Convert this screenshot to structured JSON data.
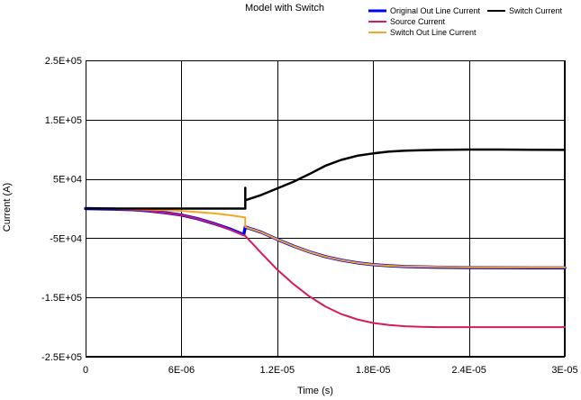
{
  "chart_data": {
    "type": "line",
    "title": "Model with Switch",
    "xlabel": "Time (s)",
    "ylabel": "Current (A)",
    "xlim": [
      0,
      3e-05
    ],
    "ylim": [
      -250000,
      250000
    ],
    "x_ticks": [
      {
        "value": 0,
        "label": "0"
      },
      {
        "value": 6e-06,
        "label": "6E-06"
      },
      {
        "value": 1.2e-05,
        "label": "1.2E-05"
      },
      {
        "value": 1.8e-05,
        "label": "1.8E-05"
      },
      {
        "value": 2.4e-05,
        "label": "2.4E-05"
      },
      {
        "value": 3e-05,
        "label": "3E-05"
      }
    ],
    "y_ticks": [
      {
        "value": 250000,
        "label": "2.5E+05"
      },
      {
        "value": 150000,
        "label": "1.5E+05"
      },
      {
        "value": 50000,
        "label": "5E+04"
      },
      {
        "value": -50000,
        "label": "-5E+04"
      },
      {
        "value": -150000,
        "label": "-1.5E+05"
      },
      {
        "value": -250000,
        "label": "-2.5E+05"
      }
    ],
    "grid": true,
    "legend_position": "top-right",
    "series": [
      {
        "name": "Original Out Line Current",
        "color": "#0000ff",
        "width": 3.5,
        "x": [
          0,
          2e-06,
          3e-06,
          4e-06,
          5e-06,
          6e-06,
          7e-06,
          8e-06,
          9e-06,
          9.9e-06,
          1e-05,
          1.1e-05,
          1.2e-05,
          1.3e-05,
          1.4e-05,
          1.5e-05,
          1.6e-05,
          1.7e-05,
          1.8e-05,
          1.9e-05,
          2e-05,
          2.1e-05,
          2.2e-05,
          2.4e-05,
          2.6e-05,
          2.8e-05,
          3e-05
        ],
        "y": [
          0,
          -1000,
          -2000,
          -4000,
          -7000,
          -11000,
          -17000,
          -25000,
          -34000,
          -44000,
          -31000,
          -40000,
          -52000,
          -63000,
          -73000,
          -81000,
          -87000,
          -91500,
          -94500,
          -96500,
          -97800,
          -98500,
          -99000,
          -99500,
          -99700,
          -99800,
          -99800
        ]
      },
      {
        "name": "Source Current",
        "color": "#d81b60",
        "width": 2,
        "x": [
          0,
          2e-06,
          3e-06,
          4e-06,
          5e-06,
          6e-06,
          7e-06,
          8e-06,
          9e-06,
          1e-05,
          1.1e-05,
          1.2e-05,
          1.3e-05,
          1.4e-05,
          1.5e-05,
          1.6e-05,
          1.7e-05,
          1.8e-05,
          1.9e-05,
          2e-05,
          2.1e-05,
          2.2e-05,
          2.4e-05,
          2.6e-05,
          2.8e-05,
          3e-05
        ],
        "y": [
          0,
          -1000,
          -2000,
          -4000,
          -7000,
          -11000,
          -17000,
          -25000,
          -35000,
          -46000,
          -75000,
          -103000,
          -127000,
          -148000,
          -165000,
          -178000,
          -187000,
          -193000,
          -196500,
          -198500,
          -199500,
          -200000,
          -200000,
          -200000,
          -200000,
          -200000
        ]
      },
      {
        "name": "Switch Out Line Current",
        "color": "#f5a623",
        "width": 2,
        "x": [
          0,
          2e-06,
          4e-06,
          6e-06,
          8e-06,
          9e-06,
          1e-05,
          1e-05,
          1.1e-05,
          1.2e-05,
          1.3e-05,
          1.4e-05,
          1.5e-05,
          1.6e-05,
          1.7e-05,
          1.8e-05,
          1.9e-05,
          2e-05,
          2.2e-05,
          2.4e-05,
          2.6e-05,
          2.8e-05,
          3e-05
        ],
        "y": [
          0,
          -300,
          -1500,
          -4000,
          -8000,
          -11000,
          -15000,
          -31000,
          -40000,
          -52000,
          -63000,
          -73000,
          -81000,
          -87000,
          -91500,
          -94500,
          -96500,
          -97500,
          -98500,
          -99000,
          -99200,
          -99300,
          -99300
        ]
      },
      {
        "name": "Switch Current",
        "color": "#000000",
        "width": 2.5,
        "x": [
          0,
          1e-05,
          1e-05,
          1e-05,
          1e-05,
          1.1e-05,
          1.2e-05,
          1.3e-05,
          1.4e-05,
          1.5e-05,
          1.6e-05,
          1.7e-05,
          1.8e-05,
          1.9e-05,
          2e-05,
          2.1e-05,
          2.2e-05,
          2.4e-05,
          2.6e-05,
          2.8e-05,
          3e-05
        ],
        "y": [
          0,
          0,
          35000,
          28000,
          14000,
          23000,
          34000,
          45000,
          58000,
          72000,
          82000,
          89000,
          93000,
          96000,
          97500,
          98500,
          99000,
          99500,
          99500,
          99300,
          99000
        ]
      }
    ]
  }
}
